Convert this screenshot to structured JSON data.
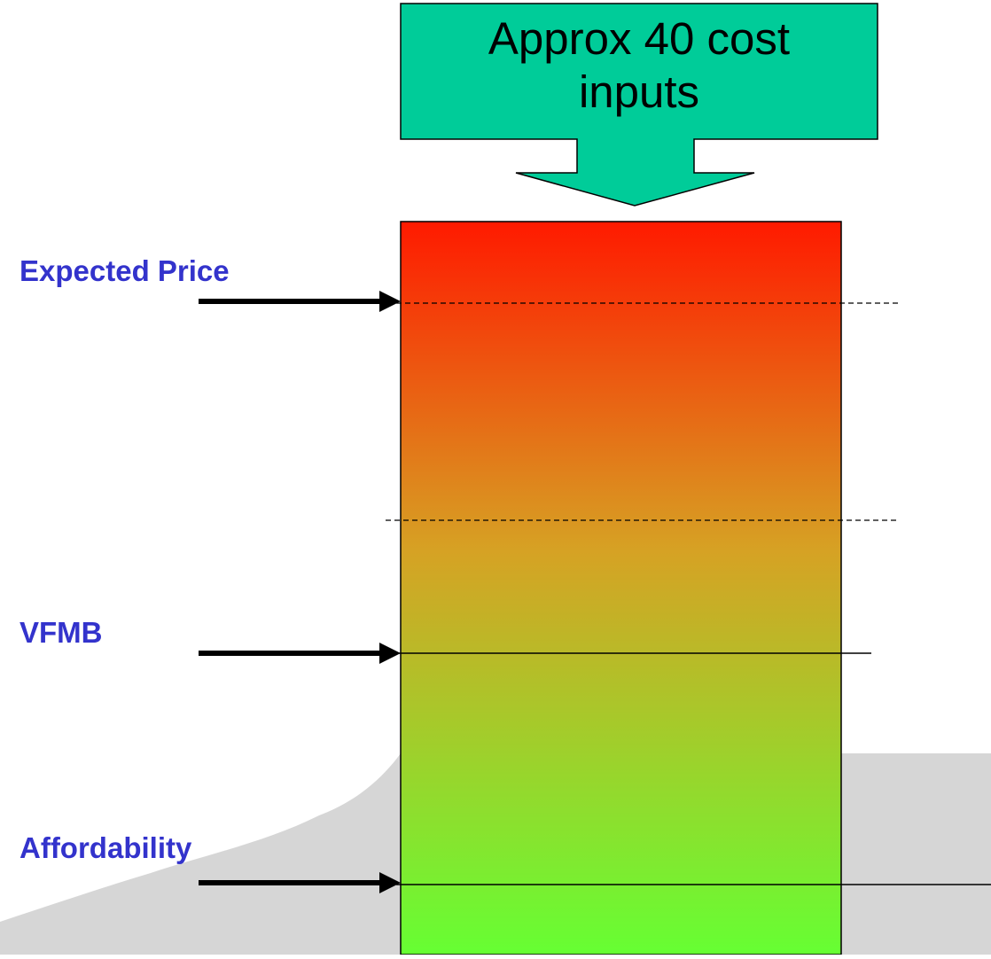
{
  "callout": {
    "line1": "Approx 40 cost",
    "line2": "inputs",
    "fill_color": "#00cc99"
  },
  "markers": {
    "expected_price": "Expected Price",
    "vfmb": "VFMB",
    "affordability": "Affordability"
  },
  "colors": {
    "label_text": "#3333cc",
    "gradient_top": "#ff1a00",
    "gradient_middle": "#d6a224",
    "gradient_bottom": "#66ff33",
    "background_shape": "#d6d6d6"
  }
}
